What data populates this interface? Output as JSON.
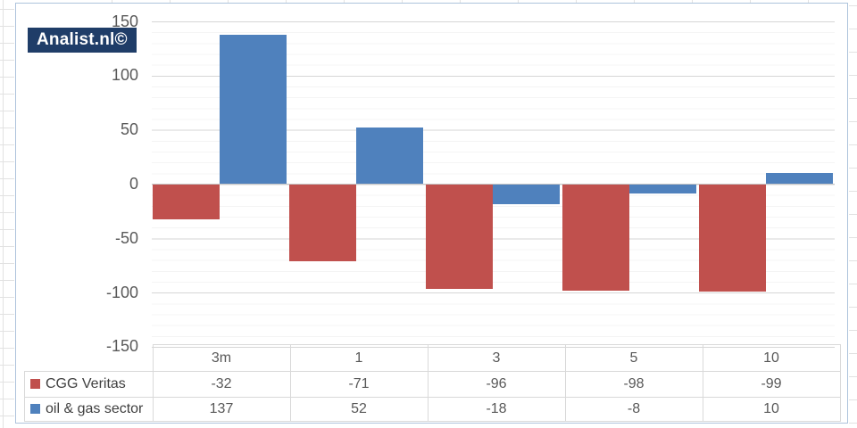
{
  "logo": {
    "text": "Analist.nl©",
    "bg": "#1f3d68",
    "fg": "#ffffff"
  },
  "chart_data": {
    "type": "bar",
    "title": "",
    "categories": [
      "3m",
      "1",
      "3",
      "5",
      "10"
    ],
    "series": [
      {
        "name": "CGG Veritas",
        "color": "#c0504d",
        "values": [
          -32,
          -71,
          -96,
          -98,
          -99
        ]
      },
      {
        "name": "oil & gas sector",
        "color": "#4f81bd",
        "values": [
          137,
          52,
          -18,
          -8,
          10
        ]
      }
    ],
    "ylim": [
      -150,
      150
    ],
    "yticks": [
      150,
      100,
      50,
      0,
      -50,
      -100,
      -150
    ],
    "grid": "horizontal, minor step 10, major step 50",
    "legend_position": "data-table-left"
  }
}
